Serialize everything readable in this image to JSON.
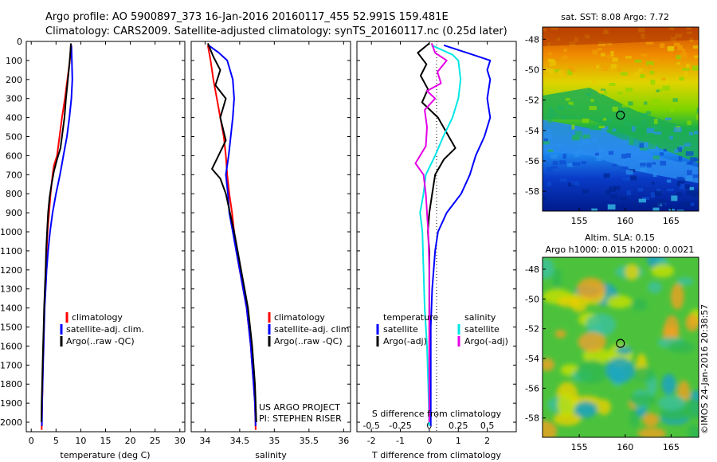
{
  "header": {
    "title_line1": "Argo profile: AO 5900897_373 16-Jan-2016 20160117_455 52.991S 159.481E",
    "title_line2": "Climatology: CARS2009. Satellite-adjusted climatology: synTS_20160117.nc (0.25d later)"
  },
  "depth_ticks": [
    "0",
    "100",
    "200",
    "300",
    "400",
    "500",
    "600",
    "700",
    "800",
    "900",
    "1000",
    "1100",
    "1200",
    "1300",
    "1400",
    "1500",
    "1600",
    "1700",
    "1800",
    "1900",
    "2000"
  ],
  "colors": {
    "climatology": "#ff0000",
    "satellite": "#0000ff",
    "argo": "#000000",
    "sat_salinity": "#00e6e6",
    "argo_salinity": "#e600e6"
  },
  "chart_data": [
    {
      "type": "line",
      "panel": "temperature",
      "xlabel": "temperature (deg C)",
      "ylabel": "",
      "xlim": [
        -1,
        31
      ],
      "ylim": [
        2050,
        0
      ],
      "xticks": [
        "0",
        "5",
        "10",
        "15",
        "20",
        "25",
        "30"
      ],
      "legend": [
        "climatology",
        "satellite-adj. clim.",
        "Argo(..raw -QC)"
      ],
      "series": [
        {
          "name": "climatology",
          "color": "red",
          "points": [
            [
              8.0,
              20
            ],
            [
              7.8,
              100
            ],
            [
              7.3,
              200
            ],
            [
              6.8,
              300
            ],
            [
              6.2,
              400
            ],
            [
              5.7,
              500
            ],
            [
              5.2,
              600
            ],
            [
              4.6,
              650
            ],
            [
              4.3,
              700
            ],
            [
              3.9,
              800
            ],
            [
              3.6,
              900
            ],
            [
              3.3,
              1000
            ],
            [
              3.1,
              1100
            ],
            [
              2.9,
              1200
            ],
            [
              2.8,
              1300
            ],
            [
              2.65,
              1400
            ],
            [
              2.55,
              1500
            ],
            [
              2.45,
              1600
            ],
            [
              2.35,
              1700
            ],
            [
              2.3,
              1800
            ],
            [
              2.2,
              1900
            ],
            [
              2.1,
              2040
            ]
          ]
        },
        {
          "name": "satellite-adj. clim.",
          "color": "blue",
          "points": [
            [
              8.1,
              20
            ],
            [
              8.2,
              100
            ],
            [
              8.3,
              200
            ],
            [
              8.1,
              300
            ],
            [
              7.7,
              400
            ],
            [
              7.2,
              500
            ],
            [
              6.5,
              600
            ],
            [
              5.8,
              700
            ],
            [
              5.0,
              800
            ],
            [
              4.3,
              900
            ],
            [
              3.8,
              1000
            ],
            [
              3.4,
              1100
            ],
            [
              3.1,
              1200
            ],
            [
              2.9,
              1300
            ],
            [
              2.7,
              1400
            ],
            [
              2.6,
              1500
            ],
            [
              2.5,
              1600
            ],
            [
              2.4,
              1700
            ],
            [
              2.3,
              1800
            ],
            [
              2.2,
              1900
            ],
            [
              2.15,
              2020
            ]
          ]
        },
        {
          "name": "Argo(..raw -QC)",
          "color": "black",
          "points": [
            [
              8.0,
              10
            ],
            [
              7.9,
              60
            ],
            [
              7.7,
              120
            ],
            [
              7.4,
              200
            ],
            [
              7.0,
              300
            ],
            [
              6.7,
              400
            ],
            [
              6.3,
              480
            ],
            [
              5.9,
              560
            ],
            [
              5.2,
              620
            ],
            [
              4.6,
              680
            ],
            [
              4.1,
              750
            ],
            [
              3.7,
              820
            ],
            [
              3.4,
              900
            ],
            [
              3.2,
              1000
            ],
            [
              3.0,
              1100
            ],
            [
              2.9,
              1200
            ],
            [
              2.75,
              1300
            ],
            [
              2.6,
              1400
            ],
            [
              2.5,
              1500
            ],
            [
              2.4,
              1600
            ],
            [
              2.3,
              1700
            ],
            [
              2.2,
              1800
            ],
            [
              2.1,
              1900
            ],
            [
              2.05,
              2000
            ]
          ]
        }
      ]
    },
    {
      "type": "line",
      "panel": "salinity",
      "xlabel": "salinity",
      "ylabel": "",
      "xlim": [
        33.8,
        36.1
      ],
      "ylim": [
        2050,
        0
      ],
      "xticks": [
        "34",
        "34.5",
        "35",
        "35.5",
        "36"
      ],
      "legend": [
        "climatology",
        "satellite-adj. clim.",
        "Argo(..raw -QC)"
      ],
      "annotations": [
        "US ARGO PROJECT",
        "PI: STEPHEN RISER"
      ],
      "series": [
        {
          "name": "climatology",
          "color": "red",
          "points": [
            [
              34.04,
              20
            ],
            [
              34.08,
              100
            ],
            [
              34.12,
              200
            ],
            [
              34.17,
              300
            ],
            [
              34.22,
              400
            ],
            [
              34.27,
              500
            ],
            [
              34.3,
              600
            ],
            [
              34.32,
              700
            ],
            [
              34.35,
              800
            ],
            [
              34.39,
              900
            ],
            [
              34.42,
              1000
            ],
            [
              34.45,
              1100
            ],
            [
              34.5,
              1200
            ],
            [
              34.55,
              1300
            ],
            [
              34.6,
              1400
            ],
            [
              34.63,
              1500
            ],
            [
              34.66,
              1600
            ],
            [
              34.68,
              1700
            ],
            [
              34.7,
              1800
            ],
            [
              34.72,
              1900
            ],
            [
              34.73,
              2040
            ]
          ]
        },
        {
          "name": "satellite-adj. clim.",
          "color": "blue",
          "points": [
            [
              34.05,
              20
            ],
            [
              34.2,
              60
            ],
            [
              34.32,
              100
            ],
            [
              34.4,
              200
            ],
            [
              34.42,
              300
            ],
            [
              34.4,
              400
            ],
            [
              34.37,
              500
            ],
            [
              34.34,
              600
            ],
            [
              34.3,
              700
            ],
            [
              34.33,
              800
            ],
            [
              34.35,
              900
            ],
            [
              34.4,
              1000
            ],
            [
              34.45,
              1100
            ],
            [
              34.5,
              1200
            ],
            [
              34.55,
              1300
            ],
            [
              34.6,
              1400
            ],
            [
              34.63,
              1500
            ],
            [
              34.66,
              1600
            ],
            [
              34.68,
              1700
            ],
            [
              34.7,
              1800
            ],
            [
              34.72,
              1900
            ],
            [
              34.73,
              2020
            ]
          ]
        },
        {
          "name": "Argo(..raw -QC)",
          "color": "black",
          "points": [
            [
              34.04,
              10
            ],
            [
              34.12,
              80
            ],
            [
              34.22,
              150
            ],
            [
              34.15,
              230
            ],
            [
              34.3,
              300
            ],
            [
              34.22,
              400
            ],
            [
              34.3,
              520
            ],
            [
              34.1,
              670
            ],
            [
              34.22,
              720
            ],
            [
              34.3,
              800
            ],
            [
              34.36,
              900
            ],
            [
              34.42,
              1000
            ],
            [
              34.47,
              1100
            ],
            [
              34.52,
              1200
            ],
            [
              34.57,
              1300
            ],
            [
              34.62,
              1400
            ],
            [
              34.65,
              1500
            ],
            [
              34.68,
              1600
            ],
            [
              34.7,
              1700
            ],
            [
              34.72,
              1800
            ],
            [
              34.73,
              1900
            ],
            [
              34.74,
              2000
            ]
          ]
        }
      ]
    },
    {
      "type": "line",
      "panel": "differences",
      "xlabel": "T difference from climatology",
      "xlabel_top": "S difference from climatology",
      "ylabel": "",
      "xlim": [
        -2.5,
        3
      ],
      "ylim": [
        2050,
        0
      ],
      "xticks": [
        "-2",
        "-1",
        "0",
        "1",
        "2"
      ],
      "xticks_top": [
        "-0.5",
        "-0.25",
        "0",
        "0.25",
        "0.5"
      ],
      "legend_headers": [
        "temperature",
        "salinity"
      ],
      "legend": [
        "satellite",
        "Argo(-adj)",
        "satellite",
        "Argo(-adj)"
      ],
      "series": [
        {
          "name": "satellite",
          "variable": "temperature",
          "color": "blue",
          "points": [
            [
              0.5,
              20
            ],
            [
              1.5,
              70
            ],
            [
              2.1,
              100
            ],
            [
              2.0,
              150
            ],
            [
              2.1,
              200
            ],
            [
              2.0,
              300
            ],
            [
              2.1,
              400
            ],
            [
              1.9,
              500
            ],
            [
              1.6,
              600
            ],
            [
              1.4,
              700
            ],
            [
              1.1,
              800
            ],
            [
              0.6,
              900
            ],
            [
              0.3,
              1000
            ],
            [
              0.2,
              1100
            ],
            [
              0.1,
              1300
            ],
            [
              0.05,
              1500
            ],
            [
              0.05,
              1700
            ],
            [
              0.05,
              2020
            ]
          ]
        },
        {
          "name": "Argo(-adj)",
          "variable": "temperature",
          "color": "black",
          "points": [
            [
              0,
              10
            ],
            [
              -0.4,
              60
            ],
            [
              -0.1,
              120
            ],
            [
              -0.3,
              180
            ],
            [
              -0.05,
              250
            ],
            [
              -0.25,
              320
            ],
            [
              0.3,
              400
            ],
            [
              0.6,
              480
            ],
            [
              0.9,
              560
            ],
            [
              0.5,
              620
            ],
            [
              0.2,
              700
            ],
            [
              0.1,
              800
            ],
            [
              0,
              900
            ],
            [
              -0.05,
              1000
            ],
            [
              0,
              1100
            ],
            [
              0,
              1300
            ],
            [
              0,
              1500
            ],
            [
              0,
              1700
            ],
            [
              0,
              2000
            ]
          ]
        },
        {
          "name": "satellite",
          "variable": "salinity",
          "color": "cyan",
          "points": [
            [
              0.02,
              20
            ],
            [
              0.2,
              70
            ],
            [
              0.25,
              100
            ],
            [
              0.27,
              200
            ],
            [
              0.25,
              300
            ],
            [
              0.2,
              400
            ],
            [
              0.12,
              500
            ],
            [
              0.05,
              600
            ],
            [
              -0.03,
              700
            ],
            [
              -0.05,
              800
            ],
            [
              -0.08,
              900
            ],
            [
              -0.06,
              1000
            ],
            [
              -0.05,
              1200
            ],
            [
              -0.04,
              1400
            ],
            [
              -0.02,
              1600
            ],
            [
              -0.01,
              1800
            ],
            [
              0,
              2020
            ]
          ]
        },
        {
          "name": "Argo(-adj)",
          "variable": "salinity",
          "color": "magenta",
          "points": [
            [
              0.02,
              10
            ],
            [
              0.05,
              60
            ],
            [
              0.15,
              100
            ],
            [
              0.07,
              160
            ],
            [
              0.1,
              220
            ],
            [
              -0.02,
              260
            ],
            [
              0.05,
              300
            ],
            [
              -0.04,
              360
            ],
            [
              -0.02,
              450
            ],
            [
              -0.03,
              550
            ],
            [
              -0.12,
              640
            ],
            [
              -0.05,
              700
            ],
            [
              -0.03,
              800
            ],
            [
              -0.02,
              900
            ],
            [
              -0.01,
              1000
            ],
            [
              0,
              1200
            ],
            [
              0,
              1500
            ],
            [
              0,
              2000
            ]
          ]
        }
      ]
    },
    {
      "type": "heatmap",
      "panel": "sat_sst_map",
      "title": "sat. SST: 8.08  Argo: 7.72",
      "xticks": [
        "155",
        "160",
        "165"
      ],
      "yticks": [
        "-48",
        "-50",
        "-52",
        "-54",
        "-56",
        "-58"
      ],
      "xlim": [
        151,
        168
      ],
      "ylim": [
        -59.3,
        -47.2
      ],
      "argo_position": [
        159.481,
        -52.991
      ]
    },
    {
      "type": "heatmap",
      "panel": "altimetry_map",
      "title_line1": "Altim. SLA: 0.15",
      "title_line2": "Argo h1000: 0.015 h2000: 0.0021",
      "xticks": [
        "155",
        "160",
        "165"
      ],
      "yticks": [
        "-48",
        "-50",
        "-52",
        "-54",
        "-56",
        "-58"
      ],
      "xlim": [
        151,
        168
      ],
      "ylim": [
        -59.3,
        -47.2
      ],
      "argo_position": [
        159.481,
        -52.991
      ]
    }
  ],
  "footer": {
    "credit": "©IMOS 24-Jan-2016 20:38:57"
  }
}
